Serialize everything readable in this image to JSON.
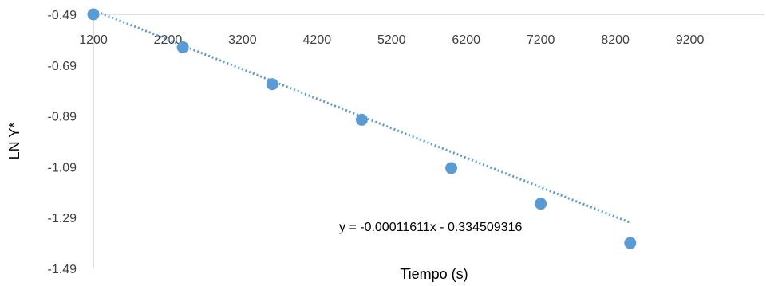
{
  "chart_data": {
    "type": "scatter",
    "title": "",
    "xlabel": "Tiempo (s)",
    "ylabel": "LN Y*",
    "xlim": [
      1200,
      10200
    ],
    "ylim": [
      -1.49,
      -0.49
    ],
    "x_ticks": [
      "1200",
      "2200",
      "3200",
      "4200",
      "5200",
      "6200",
      "7200",
      "8200",
      "9200"
    ],
    "y_ticks": [
      "-0.49",
      "-0.69",
      "-0.89",
      "-1.09",
      "-1.29",
      "-1.49"
    ],
    "x_tick_values": [
      1200,
      2200,
      3200,
      4200,
      5200,
      6200,
      7200,
      8200,
      9200
    ],
    "y_tick_values": [
      -0.49,
      -0.69,
      -0.89,
      -1.09,
      -1.29,
      -1.49
    ],
    "grid": false,
    "legend": "none",
    "series": [
      {
        "x": [
          1200,
          2400,
          3600,
          4800,
          6000,
          7200,
          8400
        ],
        "y": [
          -0.49,
          -0.62,
          -0.765,
          -0.905,
          -1.095,
          -1.235,
          -1.39
        ],
        "marker_color": "#5b9bd5"
      }
    ],
    "trendline": {
      "type": "linear",
      "slope": -0.00011611,
      "intercept": -0.334509316,
      "x_range": [
        1200,
        8400
      ],
      "style": "dotted",
      "color": "#5b9bd5",
      "equation_label": "y = -0.00011611x - 0.334509316"
    }
  }
}
